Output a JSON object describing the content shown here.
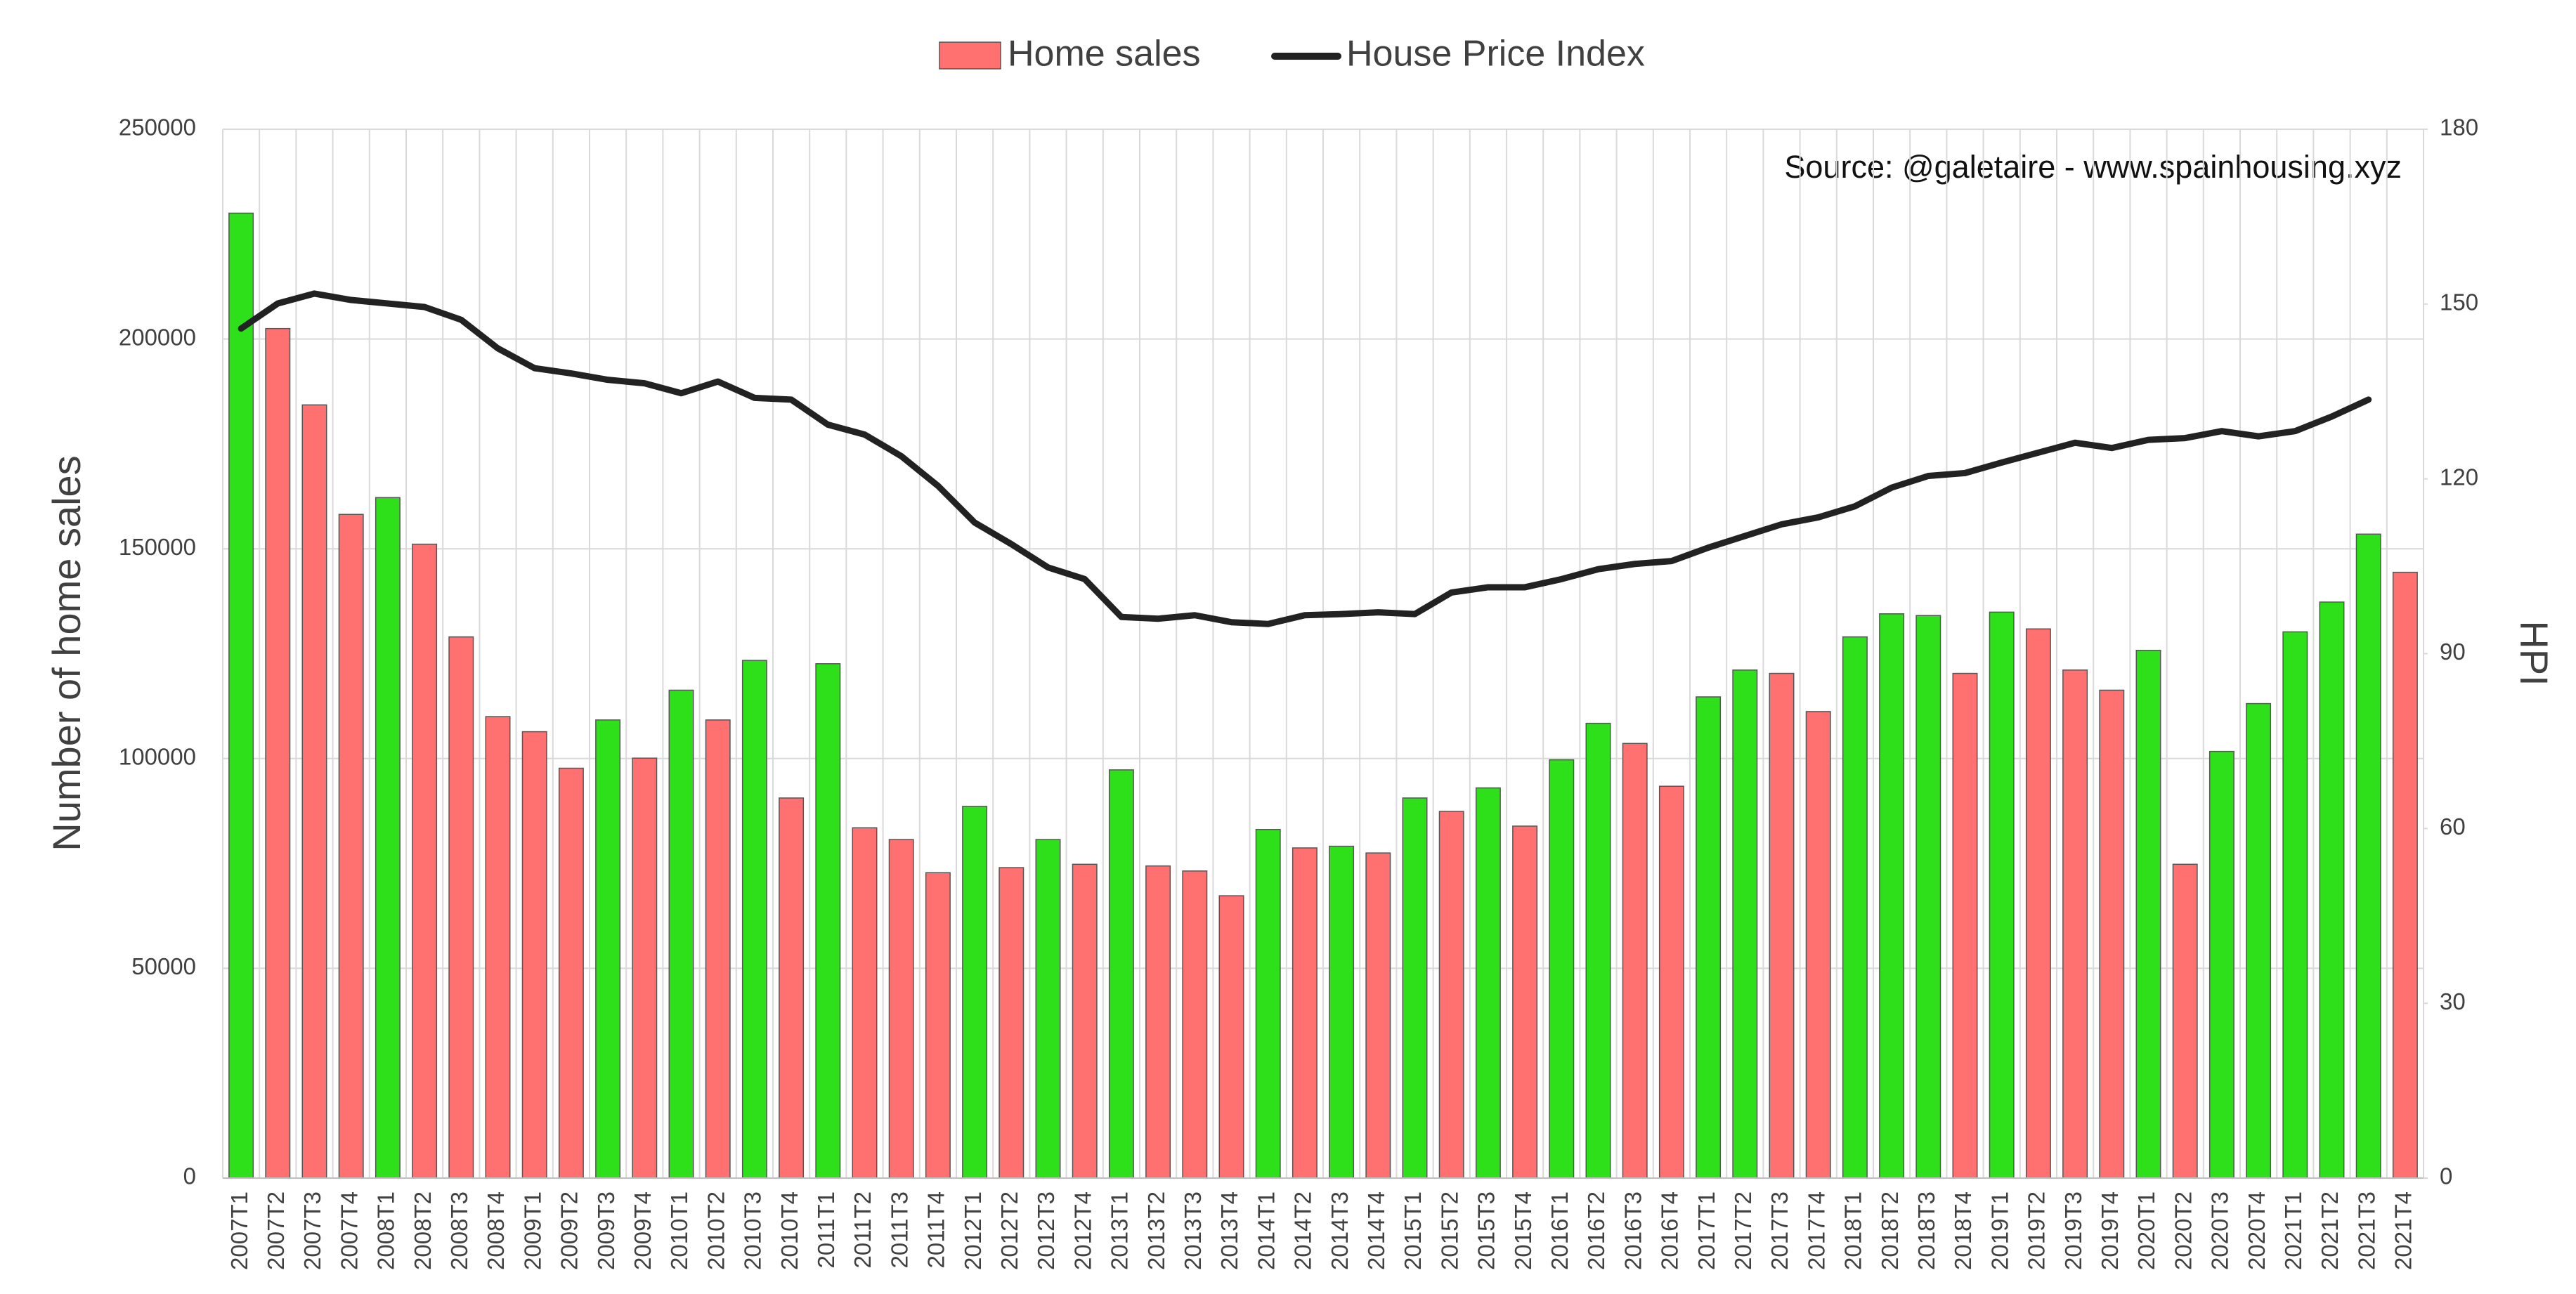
{
  "chart_data": {
    "type": "bar_line",
    "categories": [
      "2007T1",
      "2007T2",
      "2007T3",
      "2007T4",
      "2008T1",
      "2008T2",
      "2008T3",
      "2008T4",
      "2009T1",
      "2009T2",
      "2009T3",
      "2009T4",
      "2010T1",
      "2010T2",
      "2010T3",
      "2010T4",
      "2011T1",
      "2011T2",
      "2011T3",
      "2011T4",
      "2012T1",
      "2012T2",
      "2012T3",
      "2012T4",
      "2013T1",
      "2013T2",
      "2013T3",
      "2013T4",
      "2014T1",
      "2014T2",
      "2014T3",
      "2014T4",
      "2015T1",
      "2015T2",
      "2015T3",
      "2015T4",
      "2016T1",
      "2016T2",
      "2016T3",
      "2016T4",
      "2017T1",
      "2017T2",
      "2017T3",
      "2017T4",
      "2018T1",
      "2018T2",
      "2018T3",
      "2018T4",
      "2019T1",
      "2019T2",
      "2019T3",
      "2019T4",
      "2020T1",
      "2020T2",
      "2020T3",
      "2020T4",
      "2021T1",
      "2021T2",
      "2021T3",
      "2021T4"
    ],
    "series": [
      {
        "name": "Home sales",
        "color": "#ff7070",
        "colors": [
          "#2ee01a",
          "#ff7070",
          "#ff7070",
          "#ff7070",
          "#2ee01a",
          "#ff7070",
          "#ff7070",
          "#ff7070",
          "#ff7070",
          "#ff7070",
          "#2ee01a",
          "#ff7070",
          "#2ee01a",
          "#ff7070",
          "#2ee01a",
          "#ff7070",
          "#2ee01a",
          "#ff7070",
          "#ff7070",
          "#ff7070",
          "#2ee01a",
          "#ff7070",
          "#2ee01a",
          "#ff7070",
          "#2ee01a",
          "#ff7070",
          "#ff7070",
          "#ff7070",
          "#2ee01a",
          "#ff7070",
          "#2ee01a",
          "#ff7070",
          "#2ee01a",
          "#ff7070",
          "#2ee01a",
          "#ff7070",
          "#2ee01a",
          "#2ee01a",
          "#ff7070",
          "#ff7070",
          "#2ee01a",
          "#2ee01a",
          "#ff7070",
          "#ff7070",
          "#2ee01a",
          "#2ee01a",
          "#2ee01a",
          "#ff7070",
          "#2ee01a",
          "#ff7070",
          "#ff7070",
          "#ff7070",
          "#2ee01a",
          "#ff7070",
          "#2ee01a",
          "#2ee01a",
          "#2ee01a",
          "#2ee01a",
          "#2ee01a",
          "#ff7070"
        ],
        "values": [
          230000,
          202500,
          184300,
          158200,
          162200,
          151100,
          129000,
          110000,
          106400,
          97700,
          109200,
          100100,
          116300,
          109200,
          123400,
          90600,
          122600,
          83500,
          80700,
          72800,
          88600,
          74000,
          80700,
          74800,
          97300,
          74400,
          73200,
          67300,
          83100,
          78700,
          79100,
          77500,
          90600,
          87400,
          93000,
          83900,
          99700,
          108400,
          103600,
          93400,
          114700,
          121100,
          120300,
          111200,
          129000,
          134500,
          134100,
          120300,
          134900,
          130900,
          121100,
          116300,
          125800,
          74800,
          101700,
          113100,
          130200,
          137300,
          153500,
          144400
        ]
      },
      {
        "name": "House Price Index",
        "color": "#222222",
        "axis": "y2",
        "values": [
          145.8,
          150.1,
          151.8,
          150.7,
          150.1,
          149.5,
          147.3,
          142.4,
          139,
          138.1,
          137,
          136.4,
          134.7,
          136.7,
          133.9,
          133.6,
          129.3,
          127.6,
          123.9,
          118.8,
          112.5,
          108.8,
          104.8,
          102.8,
          96.3,
          96,
          96.6,
          95.4,
          95.1,
          96.6,
          96.8,
          97.1,
          96.8,
          100.5,
          101.4,
          101.4,
          102.8,
          104.5,
          105.4,
          105.9,
          108.2,
          110.2,
          112.2,
          113.4,
          115.3,
          118.5,
          120.5,
          121,
          122.8,
          124.5,
          126.2,
          125.3,
          126.7,
          127,
          128.2,
          127.3,
          128.2,
          130.7,
          133.6,
          null
        ]
      }
    ],
    "ylabel": "Number of home sales",
    "y2label": "HPI",
    "annotation": "Source: @galetaire - www.spainhousing.xyz",
    "ylim": [
      0,
      250000
    ],
    "yticks": [
      0,
      50000,
      100000,
      150000,
      200000,
      250000
    ],
    "y2lim": [
      0,
      180
    ],
    "y2ticks": [
      0,
      30,
      60,
      90,
      120,
      150,
      180
    ],
    "grid": true,
    "legend": "top"
  }
}
